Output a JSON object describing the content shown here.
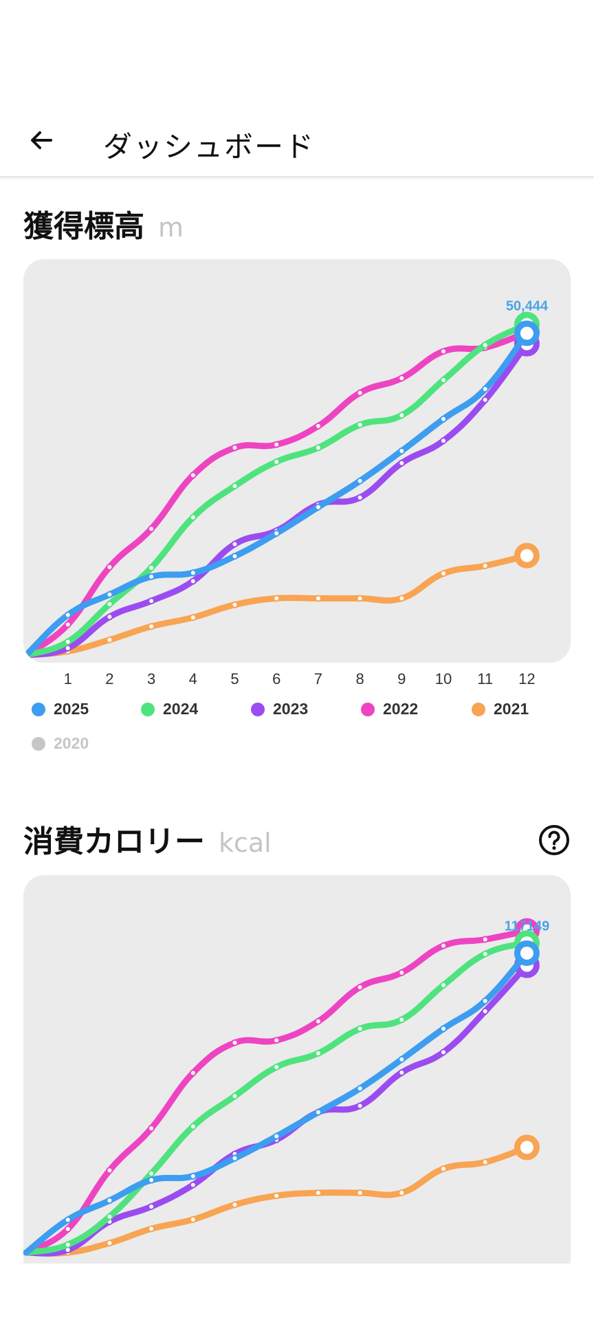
{
  "app_bar": {
    "title": "ダッシュボード",
    "back_icon": "arrow-left-icon"
  },
  "sections": [
    {
      "title": "獲得標高",
      "unit": "m"
    },
    {
      "title": "消費カロリー",
      "unit": "kcal",
      "help_icon": "question-circle-icon"
    }
  ],
  "colors": {
    "2025": "#3d9df0",
    "2024": "#4ee37e",
    "2023": "#9b4cf0",
    "2022": "#ee44c2",
    "2021": "#f8a452",
    "2020": "#c6c6c6",
    "card_bg": "#ebebeb",
    "value_label": "#4aa3e8"
  },
  "legend": [
    {
      "label": "2025",
      "active": true
    },
    {
      "label": "2024",
      "active": true
    },
    {
      "label": "2023",
      "active": true
    },
    {
      "label": "2022",
      "active": true
    },
    {
      "label": "2021",
      "active": true
    },
    {
      "label": "2020",
      "active": false
    }
  ],
  "chart_data": [
    {
      "type": "line",
      "title": "獲得標高",
      "unit": "m",
      "x": [
        0,
        1,
        2,
        3,
        4,
        5,
        6,
        7,
        8,
        9,
        10,
        11,
        12
      ],
      "x_tick_labels": [
        "1",
        "2",
        "3",
        "4",
        "5",
        "6",
        "7",
        "8",
        "9",
        "10",
        "11",
        "12"
      ],
      "ylim": [
        0,
        53000
      ],
      "end_value_label": "50,444",
      "series": [
        {
          "name": "2025",
          "values": [
            0,
            6300,
            9500,
            12300,
            12900,
            15500,
            19100,
            23200,
            27300,
            32000,
            37000,
            41700,
            50444
          ]
        },
        {
          "name": "2024",
          "values": [
            0,
            2100,
            8000,
            13700,
            21600,
            26500,
            30300,
            32500,
            36100,
            37600,
            43100,
            48600,
            51800
          ]
        },
        {
          "name": "2023",
          "values": [
            0,
            1100,
            6000,
            8500,
            11600,
            17400,
            19500,
            23600,
            24700,
            30100,
            33600,
            40000,
            48800
          ]
        },
        {
          "name": "2022",
          "values": [
            0,
            4800,
            13800,
            19800,
            28200,
            32500,
            33000,
            35900,
            41100,
            43400,
            47600,
            48200,
            50600
          ]
        },
        {
          "name": "2021",
          "values": [
            0,
            600,
            2400,
            4500,
            5900,
            7900,
            8900,
            8900,
            8900,
            8900,
            12800,
            14000,
            15600
          ]
        }
      ]
    },
    {
      "type": "line",
      "title": "消費カロリー",
      "unit": "kcal",
      "x": [
        0,
        1,
        2,
        3,
        4,
        5,
        6,
        7,
        8,
        9,
        10,
        11,
        12
      ],
      "ylim": [
        0,
        122000
      ],
      "end_value_label": "117149",
      "series": [
        {
          "name": "2025",
          "values": [
            0,
            12400,
            19700,
            27400,
            28900,
            35700,
            44000,
            53100,
            62100,
            73100,
            84700,
            95200,
            113300
          ]
        },
        {
          "name": "2024",
          "values": [
            0,
            3000,
            13600,
            29900,
            47700,
            59200,
            70200,
            75400,
            84700,
            88100,
            101200,
            113000,
            117149
          ]
        },
        {
          "name": "2023",
          "values": [
            0,
            1000,
            11700,
            17400,
            25600,
            37300,
            42700,
            53100,
            55500,
            68100,
            75800,
            91300,
            108700
          ]
        },
        {
          "name": "2022",
          "values": [
            0,
            8900,
            31100,
            47000,
            68000,
            79400,
            80300,
            87500,
            100400,
            105900,
            116100,
            118500,
            121700
          ]
        },
        {
          "name": "2021",
          "values": [
            0,
            0,
            3600,
            9000,
            12500,
            18100,
            21500,
            22600,
            22600,
            22600,
            31700,
            34200,
            39800
          ]
        }
      ]
    }
  ]
}
